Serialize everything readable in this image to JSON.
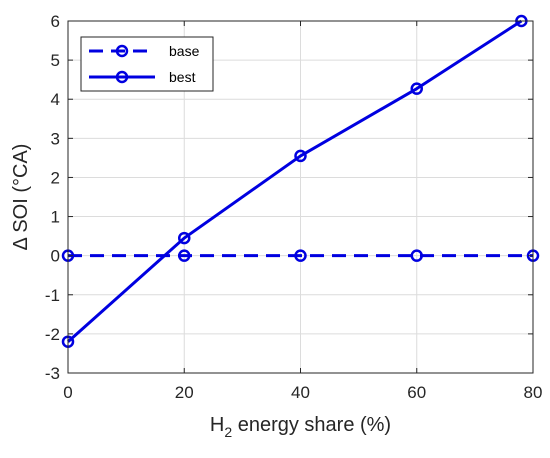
{
  "chart_data": {
    "type": "line",
    "xlabel_main": "H",
    "xlabel_sub": "2",
    "xlabel_rest": " energy share (%)",
    "ylabel": "Δ SOI (°CA)",
    "xlim": [
      0,
      80
    ],
    "ylim": [
      -3,
      6
    ],
    "xticks": [
      0,
      20,
      40,
      60,
      80
    ],
    "yticks": [
      -3,
      -2,
      -1,
      0,
      1,
      2,
      3,
      4,
      5,
      6
    ],
    "grid": true,
    "legend_position": "top-left",
    "series": [
      {
        "name": "base",
        "style": "dashed",
        "marker": "circle",
        "color": "#0000e0",
        "x": [
          0,
          20,
          40,
          60,
          80
        ],
        "y": [
          0,
          0,
          0,
          0,
          0
        ]
      },
      {
        "name": "best",
        "style": "solid",
        "marker": "circle",
        "color": "#0000e0",
        "x": [
          0,
          20,
          40,
          60,
          78
        ],
        "y": [
          -2.2,
          0.45,
          2.55,
          4.27,
          6.0
        ]
      }
    ]
  }
}
